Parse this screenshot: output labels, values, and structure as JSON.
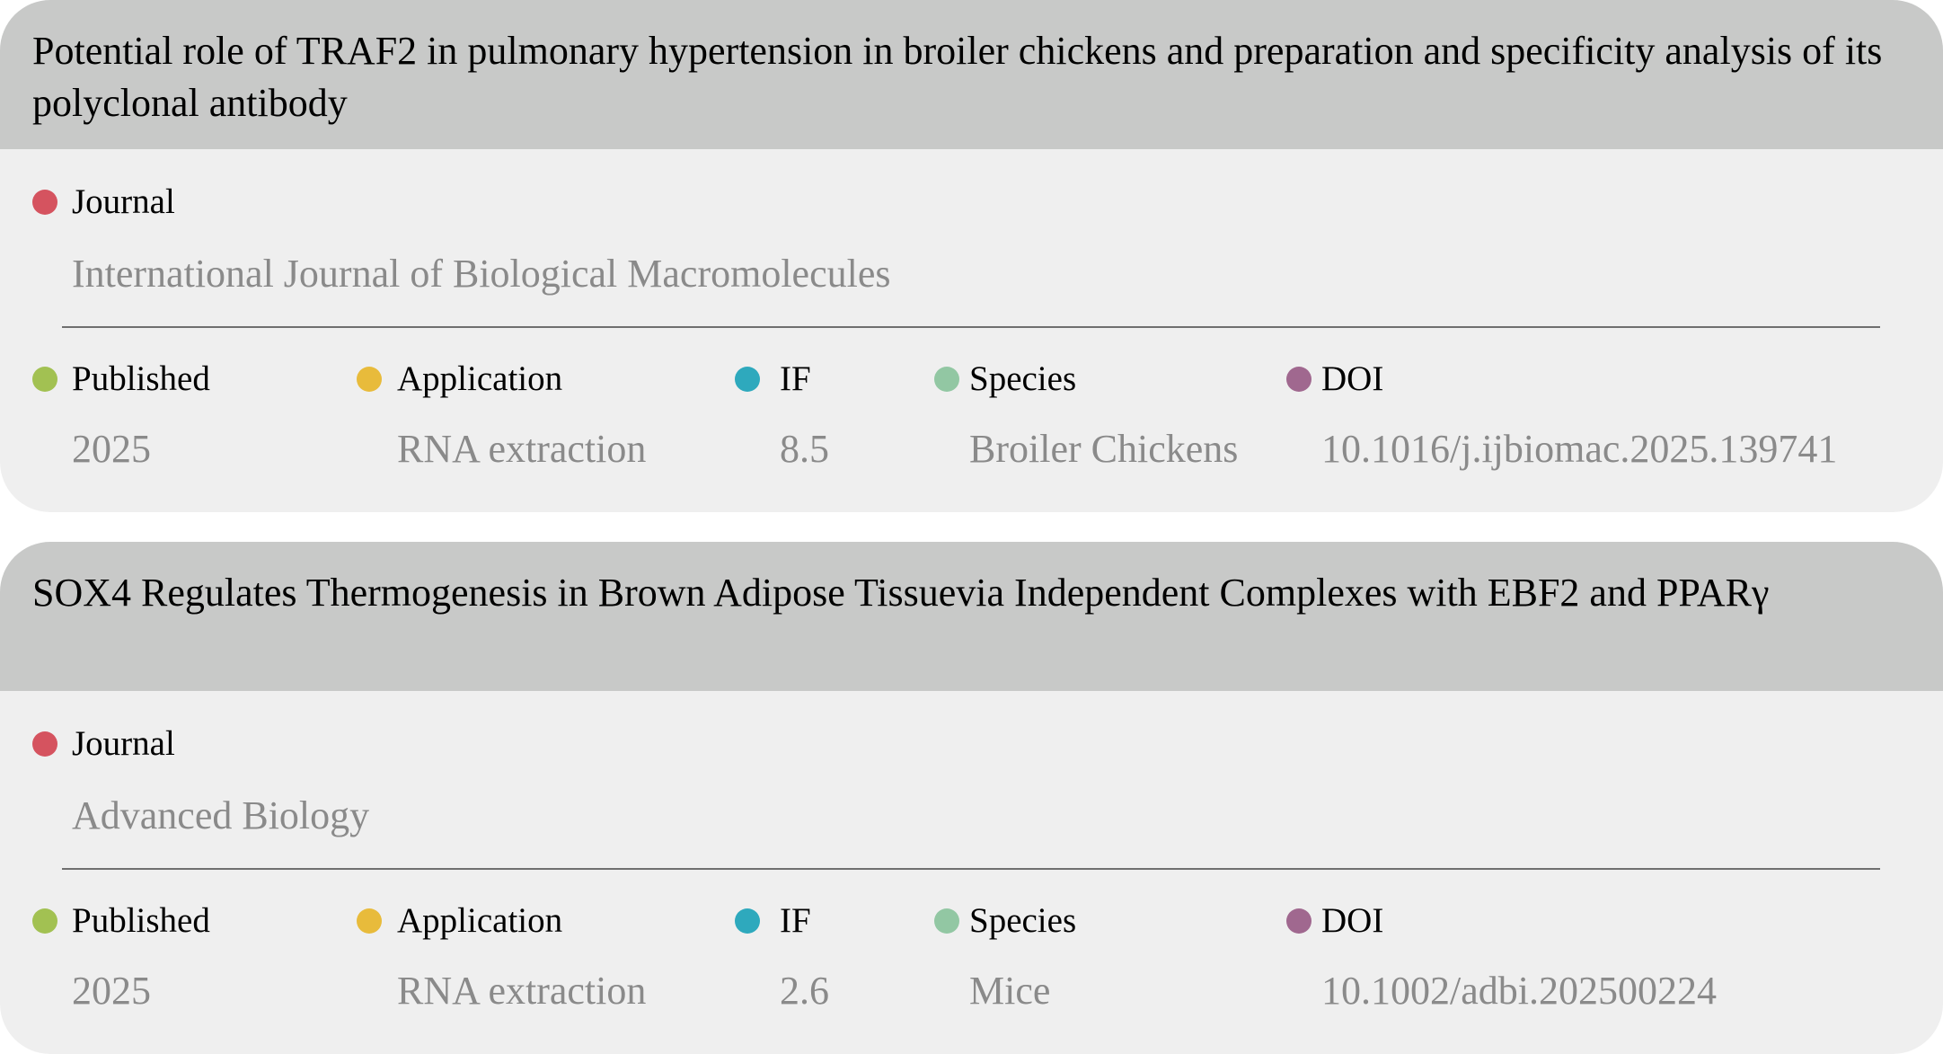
{
  "colors": {
    "header_bg": "#c8c9c8",
    "card_bg": "#efefef",
    "value_text": "#8a8a8a",
    "journal_dot": "#d5535f",
    "published_dot": "#a2c152",
    "application_dot": "#e8bb3b",
    "if_dot": "#2ea9bd",
    "species_dot": "#92c7a3",
    "doi_dot": "#a0688f"
  },
  "labels": {
    "journal": "Journal",
    "published": "Published",
    "application": "Application",
    "if": "IF",
    "species": "Species",
    "doi": "DOI"
  },
  "publications": [
    {
      "title": "Potential role of TRAF2 in pulmonary hypertension in broiler chickens and preparation and specificity analysis of its polyclonal antibody",
      "journal": "International Journal of Biological Macromolecules",
      "published": "2025",
      "application": "RNA extraction",
      "if": "8.5",
      "species": "Broiler Chickens",
      "doi": "10.1016/j.ijbiomac.2025.139741"
    },
    {
      "title": "SOX4 Regulates Thermogenesis in Brown Adipose Tissuevia Independent Complexes with EBF2 and PPARγ",
      "journal": "Advanced Biology",
      "published": "2025",
      "application": "RNA extraction",
      "if": "2.6",
      "species": "Mice",
      "doi": "10.1002/adbi.202500224"
    }
  ]
}
